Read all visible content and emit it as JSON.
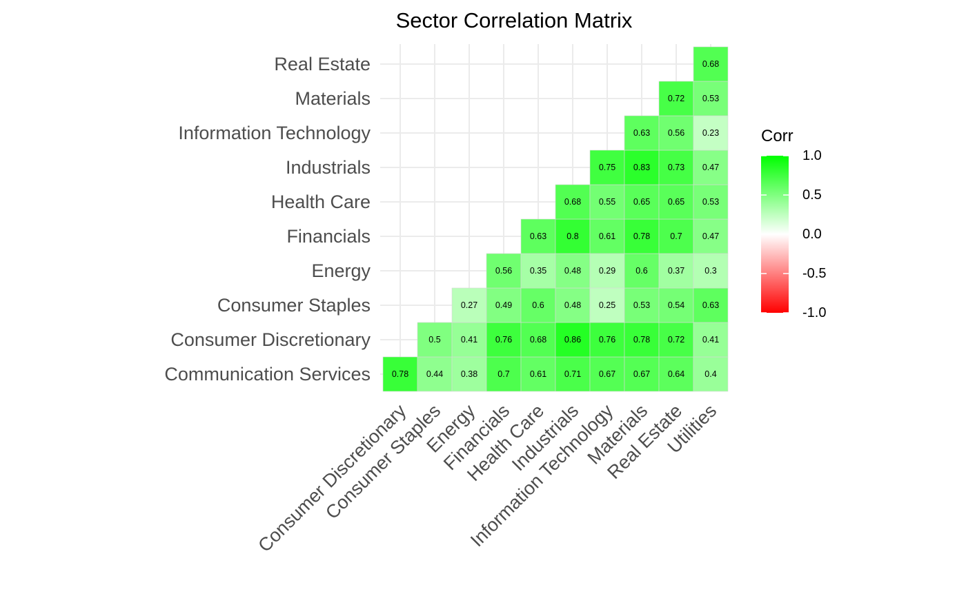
{
  "chart_data": {
    "type": "heatmap",
    "title": "Sector Correlation Matrix",
    "xlabel": "",
    "ylabel": "",
    "x_categories": [
      "Consumer Discretionary",
      "Consumer Staples",
      "Energy",
      "Financials",
      "Health Care",
      "Industrials",
      "Information Technology",
      "Materials",
      "Real Estate",
      "Utilities"
    ],
    "y_categories": [
      "Communication Services",
      "Consumer Discretionary",
      "Consumer Staples",
      "Energy",
      "Financials",
      "Health Care",
      "Industrials",
      "Information Technology",
      "Materials",
      "Real Estate"
    ],
    "values": [
      [
        0.78,
        0.44,
        0.38,
        0.7,
        0.61,
        0.71,
        0.67,
        0.67,
        0.64,
        0.4
      ],
      [
        null,
        0.5,
        0.41,
        0.76,
        0.68,
        0.86,
        0.76,
        0.78,
        0.72,
        0.41
      ],
      [
        null,
        null,
        0.27,
        0.49,
        0.6,
        0.48,
        0.25,
        0.53,
        0.54,
        0.63
      ],
      [
        null,
        null,
        null,
        0.56,
        0.35,
        0.48,
        0.29,
        0.6,
        0.37,
        0.3
      ],
      [
        null,
        null,
        null,
        null,
        0.63,
        0.8,
        0.61,
        0.78,
        0.7,
        0.47
      ],
      [
        null,
        null,
        null,
        null,
        null,
        0.68,
        0.55,
        0.65,
        0.65,
        0.53
      ],
      [
        null,
        null,
        null,
        null,
        null,
        null,
        0.75,
        0.83,
        0.73,
        0.47
      ],
      [
        null,
        null,
        null,
        null,
        null,
        null,
        null,
        0.63,
        0.56,
        0.23
      ],
      [
        null,
        null,
        null,
        null,
        null,
        null,
        null,
        null,
        0.72,
        0.53
      ],
      [
        null,
        null,
        null,
        null,
        null,
        null,
        null,
        null,
        null,
        0.68
      ]
    ],
    "legend": {
      "title": "Corr",
      "placement": "right",
      "range": [
        -1,
        1
      ],
      "ticks": [
        1.0,
        0.5,
        0.0,
        -0.5,
        -1.0
      ],
      "tick_labels": [
        "1.0",
        "0.5",
        "0.0",
        "-0.5",
        "-1.0"
      ],
      "colors": {
        "low": "#ff0000",
        "mid": "#ffffff",
        "high": "#00ff00"
      }
    },
    "grid": true
  }
}
